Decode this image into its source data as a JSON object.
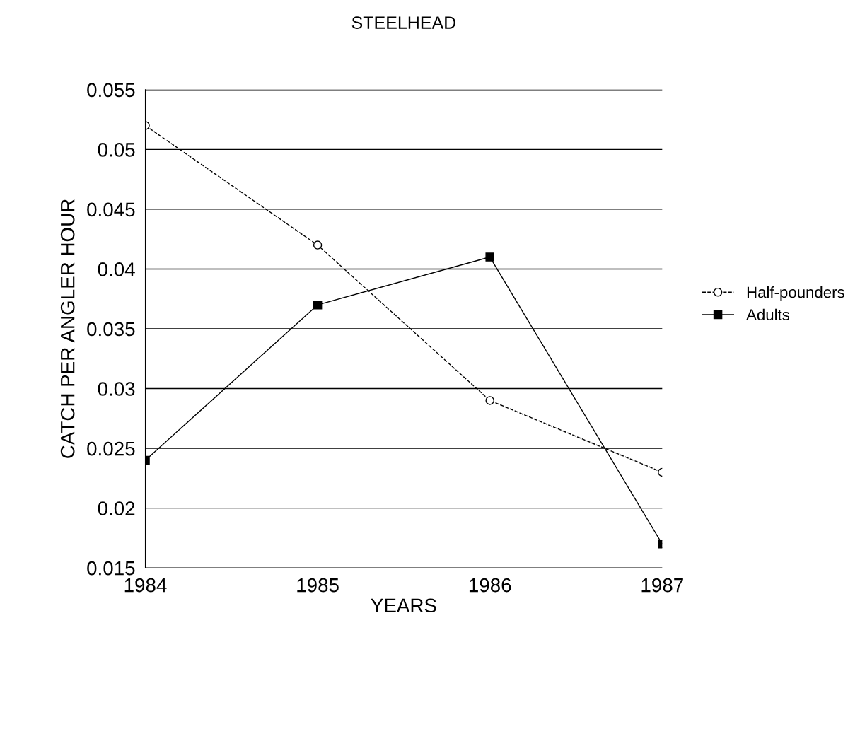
{
  "chart_data": {
    "type": "line",
    "title": "STEELHEAD",
    "xlabel": "YEARS",
    "ylabel": "CATCH PER ANGLER HOUR",
    "categories": [
      "1984",
      "1985",
      "1986",
      "1987"
    ],
    "series": [
      {
        "name": "Half-pounders",
        "color": "#000000",
        "marker": "circle",
        "line_style": "dashed",
        "values": [
          0.052,
          0.042,
          0.029,
          0.023
        ]
      },
      {
        "name": "Adults",
        "color": "#000000",
        "marker": "square",
        "line_style": "solid",
        "values": [
          0.024,
          0.037,
          0.041,
          0.017
        ]
      }
    ],
    "ylim": [
      0.015,
      0.055
    ],
    "yticks": [
      0.015,
      0.02,
      0.025,
      0.03,
      0.035,
      0.04,
      0.045,
      0.05,
      0.055
    ],
    "grid": "y",
    "legend": "right"
  }
}
